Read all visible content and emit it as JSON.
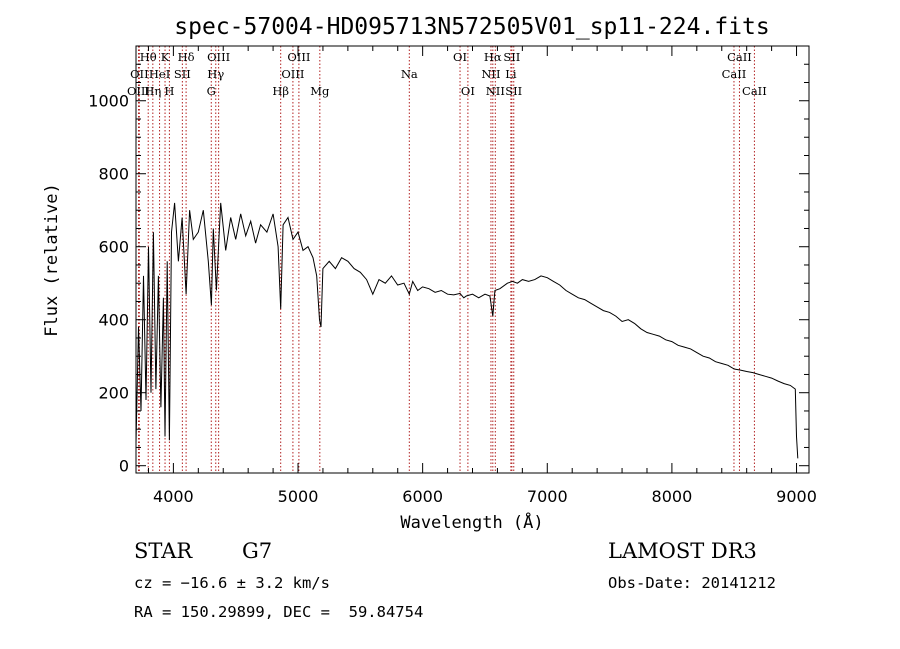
{
  "chart_data": {
    "type": "line",
    "title": "spec-57004-HD095713N572505V01_sp11-224.fits",
    "xlabel": "Wavelength (Å)",
    "ylabel": "Flux (relative)",
    "xlim": [
      3700,
      9100
    ],
    "ylim": [
      -20,
      1150
    ],
    "x_ticks": [
      4000,
      5000,
      6000,
      7000,
      8000,
      9000
    ],
    "y_ticks": [
      0,
      200,
      400,
      600,
      800,
      1000
    ],
    "grid": false,
    "series": [
      {
        "name": "flux",
        "points": [
          [
            3700,
            60
          ],
          [
            3720,
            380
          ],
          [
            3740,
            150
          ],
          [
            3760,
            520
          ],
          [
            3780,
            180
          ],
          [
            3800,
            600
          ],
          [
            3820,
            200
          ],
          [
            3840,
            640
          ],
          [
            3860,
            210
          ],
          [
            3880,
            520
          ],
          [
            3900,
            160
          ],
          [
            3920,
            460
          ],
          [
            3933,
            80
          ],
          [
            3950,
            560
          ],
          [
            3968,
            70
          ],
          [
            3985,
            640
          ],
          [
            4010,
            720
          ],
          [
            4040,
            560
          ],
          [
            4070,
            680
          ],
          [
            4102,
            470
          ],
          [
            4130,
            700
          ],
          [
            4160,
            620
          ],
          [
            4200,
            640
          ],
          [
            4240,
            700
          ],
          [
            4280,
            560
          ],
          [
            4305,
            440
          ],
          [
            4320,
            650
          ],
          [
            4345,
            480
          ],
          [
            4380,
            720
          ],
          [
            4420,
            590
          ],
          [
            4460,
            680
          ],
          [
            4500,
            620
          ],
          [
            4540,
            690
          ],
          [
            4580,
            630
          ],
          [
            4620,
            670
          ],
          [
            4660,
            610
          ],
          [
            4700,
            660
          ],
          [
            4750,
            640
          ],
          [
            4800,
            690
          ],
          [
            4840,
            600
          ],
          [
            4861,
            430
          ],
          [
            4880,
            660
          ],
          [
            4920,
            680
          ],
          [
            4960,
            620
          ],
          [
            5000,
            640
          ],
          [
            5040,
            590
          ],
          [
            5080,
            600
          ],
          [
            5120,
            570
          ],
          [
            5150,
            520
          ],
          [
            5172,
            400
          ],
          [
            5184,
            380
          ],
          [
            5200,
            540
          ],
          [
            5250,
            560
          ],
          [
            5300,
            540
          ],
          [
            5350,
            570
          ],
          [
            5400,
            560
          ],
          [
            5450,
            540
          ],
          [
            5500,
            530
          ],
          [
            5550,
            510
          ],
          [
            5600,
            470
          ],
          [
            5650,
            510
          ],
          [
            5700,
            500
          ],
          [
            5750,
            520
          ],
          [
            5800,
            495
          ],
          [
            5850,
            500
          ],
          [
            5893,
            470
          ],
          [
            5920,
            505
          ],
          [
            5960,
            480
          ],
          [
            6000,
            490
          ],
          [
            6050,
            485
          ],
          [
            6100,
            475
          ],
          [
            6150,
            480
          ],
          [
            6200,
            470
          ],
          [
            6250,
            468
          ],
          [
            6300,
            472
          ],
          [
            6330,
            460
          ],
          [
            6350,
            465
          ],
          [
            6400,
            470
          ],
          [
            6450,
            460
          ],
          [
            6500,
            470
          ],
          [
            6540,
            465
          ],
          [
            6563,
            410
          ],
          [
            6580,
            480
          ],
          [
            6620,
            485
          ],
          [
            6680,
            500
          ],
          [
            6720,
            505
          ],
          [
            6760,
            500
          ],
          [
            6800,
            510
          ],
          [
            6850,
            505
          ],
          [
            6900,
            510
          ],
          [
            6950,
            520
          ],
          [
            7000,
            515
          ],
          [
            7050,
            505
          ],
          [
            7100,
            495
          ],
          [
            7150,
            480
          ],
          [
            7200,
            470
          ],
          [
            7250,
            460
          ],
          [
            7300,
            455
          ],
          [
            7350,
            445
          ],
          [
            7400,
            435
          ],
          [
            7450,
            425
          ],
          [
            7500,
            420
          ],
          [
            7550,
            410
          ],
          [
            7600,
            395
          ],
          [
            7650,
            400
          ],
          [
            7700,
            390
          ],
          [
            7750,
            375
          ],
          [
            7800,
            365
          ],
          [
            7850,
            360
          ],
          [
            7900,
            355
          ],
          [
            7950,
            345
          ],
          [
            8000,
            340
          ],
          [
            8050,
            330
          ],
          [
            8100,
            325
          ],
          [
            8150,
            320
          ],
          [
            8200,
            310
          ],
          [
            8250,
            300
          ],
          [
            8300,
            295
          ],
          [
            8350,
            285
          ],
          [
            8400,
            280
          ],
          [
            8450,
            275
          ],
          [
            8500,
            265
          ],
          [
            8550,
            262
          ],
          [
            8600,
            258
          ],
          [
            8650,
            255
          ],
          [
            8700,
            250
          ],
          [
            8750,
            245
          ],
          [
            8800,
            240
          ],
          [
            8850,
            232
          ],
          [
            8900,
            225
          ],
          [
            8950,
            220
          ],
          [
            8990,
            210
          ],
          [
            9000,
            80
          ],
          [
            9010,
            20
          ]
        ]
      }
    ],
    "spectral_lines": [
      {
        "label": "Hθ",
        "wavelength": 3798,
        "row": 1
      },
      {
        "label": "OII",
        "wavelength": 3727,
        "row": 2
      },
      {
        "label": "OIII",
        "wavelength": 3720,
        "row": 3
      },
      {
        "label": "Hη",
        "wavelength": 3835,
        "row": 3
      },
      {
        "label": "HeI",
        "wavelength": 3889,
        "row": 2
      },
      {
        "label": "K",
        "wavelength": 3933,
        "row": 1
      },
      {
        "label": "SII",
        "wavelength": 4072,
        "row": 2
      },
      {
        "label": "H",
        "wavelength": 3968,
        "row": 3
      },
      {
        "label": "Hδ",
        "wavelength": 4102,
        "row": 1
      },
      {
        "label": "OIII",
        "wavelength": 4363,
        "row": 1
      },
      {
        "label": "Hγ",
        "wavelength": 4340,
        "row": 2
      },
      {
        "label": "G",
        "wavelength": 4304,
        "row": 3
      },
      {
        "label": "OIII",
        "wavelength": 5007,
        "row": 1
      },
      {
        "label": "OIII",
        "wavelength": 4959,
        "row": 2
      },
      {
        "label": "Hβ",
        "wavelength": 4861,
        "row": 3
      },
      {
        "label": "Mg",
        "wavelength": 5175,
        "row": 3
      },
      {
        "label": "Na",
        "wavelength": 5893,
        "row": 2
      },
      {
        "label": "OI",
        "wavelength": 6300,
        "row": 1
      },
      {
        "label": "OI",
        "wavelength": 6363,
        "row": 3
      },
      {
        "label": "Hα",
        "wavelength": 6563,
        "row": 1
      },
      {
        "label": "SII",
        "wavelength": 6716,
        "row": 1
      },
      {
        "label": "NII",
        "wavelength": 6548,
        "row": 2
      },
      {
        "label": "Li",
        "wavelength": 6708,
        "row": 2
      },
      {
        "label": "NII",
        "wavelength": 6583,
        "row": 3
      },
      {
        "label": "SII",
        "wavelength": 6731,
        "row": 3
      },
      {
        "label": "CaII",
        "wavelength": 8542,
        "row": 1
      },
      {
        "label": "CaII",
        "wavelength": 8498,
        "row": 2
      },
      {
        "label": "CaII",
        "wavelength": 8662,
        "row": 3
      }
    ]
  },
  "info": {
    "class": "STAR",
    "subclass": "G7",
    "survey": "LAMOST DR3",
    "cz": "cz = −16.6 ± 3.2 km/s",
    "obs_date": "Obs-Date: 20141212",
    "coords": "RA = 150.29899, DEC =  59.84754"
  },
  "colors": {
    "axis": "#000000",
    "spectrum": "#000000",
    "line_marker": "#b22222"
  }
}
